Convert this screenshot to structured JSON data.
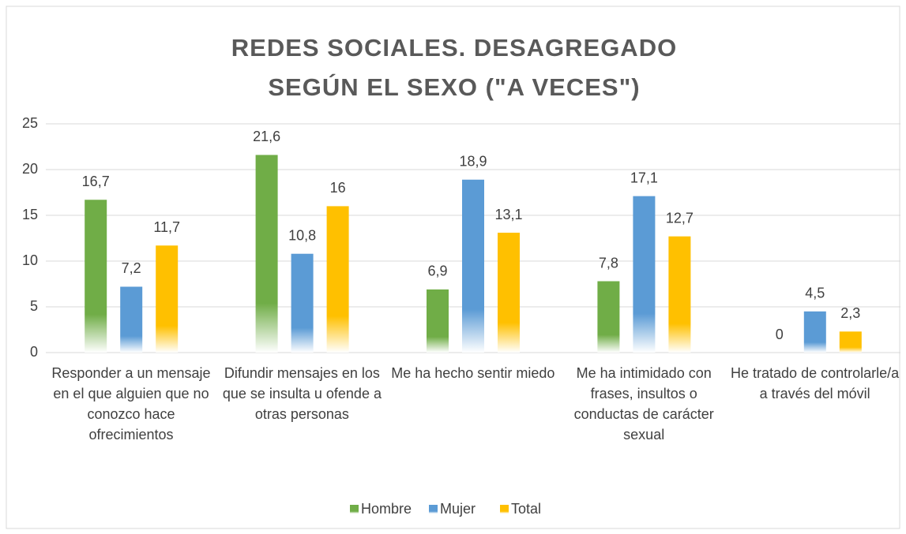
{
  "chart_data": {
    "type": "bar",
    "title": "REDES SOCIALES. DESAGREGADO SEGÚN EL SEXO (\"A VECES\")",
    "categories": [
      "Responder a un mensaje en el que alguien que no conozco hace ofrecimientos",
      "Difundir mensajes en los que se insulta u ofende a otras personas",
      "Me ha hecho sentir miedo",
      "Me ha intimidado con frases, insultos o conductas de carácter sexual",
      "He tratado de controlarle/a a través del móvil"
    ],
    "series": [
      {
        "name": "Hombre",
        "color": "#70ad47",
        "values": [
          16.7,
          21.6,
          6.9,
          7.8,
          0
        ],
        "value_labels": [
          "16,7",
          "21,6",
          "6,9",
          "7,8",
          "0"
        ]
      },
      {
        "name": "Mujer",
        "color": "#5b9bd5",
        "values": [
          7.2,
          10.8,
          18.9,
          17.1,
          4.5
        ],
        "value_labels": [
          "7,2",
          "10,8",
          "18,9",
          "17,1",
          "4,5"
        ]
      },
      {
        "name": "Total",
        "color": "#ffc000",
        "values": [
          11.7,
          16,
          13.1,
          12.7,
          2.3
        ],
        "value_labels": [
          "11,7",
          "16",
          "13,1",
          "12,7",
          "2,3"
        ]
      }
    ],
    "ylim": [
      0,
      25
    ],
    "yticks": [
      0,
      5,
      10,
      15,
      20,
      25
    ],
    "grid": true,
    "legend": "bottom"
  }
}
